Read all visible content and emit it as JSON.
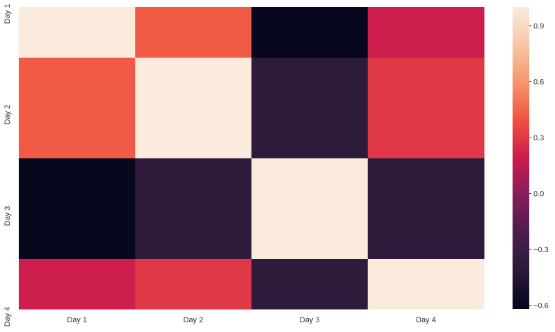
{
  "chart_data": {
    "type": "heatmap",
    "title": "",
    "xlabel": "",
    "ylabel": "",
    "x_categories": [
      "Day 1",
      "Day 2",
      "Day 3",
      "Day 4"
    ],
    "y_categories": [
      "Day 1",
      "Day 2",
      "Day 3",
      "Day 4"
    ],
    "values": [
      [
        1.0,
        0.42,
        -0.6,
        0.2
      ],
      [
        0.42,
        1.0,
        -0.4,
        0.3
      ],
      [
        -0.6,
        -0.4,
        1.0,
        -0.4
      ],
      [
        0.2,
        0.3,
        -0.4,
        1.0
      ]
    ],
    "colorbar": {
      "vmin": -0.62,
      "vmax": 1.0,
      "ticks": [
        -0.6,
        -0.3,
        0.0,
        0.3,
        0.6,
        0.9
      ],
      "tick_labels": [
        "−0.6",
        "−0.3",
        "0.0",
        "0.3",
        "0.6",
        "0.9"
      ],
      "colormap": "rocket",
      "colormap_stops": [
        {
          "t": 0.0,
          "color": "#03051a"
        },
        {
          "t": 0.125,
          "color": "#2b1a3a"
        },
        {
          "t": 0.25,
          "color": "#4c1d4b"
        },
        {
          "t": 0.375,
          "color": "#841e5a"
        },
        {
          "t": 0.5,
          "color": "#cb1b4f"
        },
        {
          "t": 0.625,
          "color": "#f0513e"
        },
        {
          "t": 0.75,
          "color": "#f6966b"
        },
        {
          "t": 0.875,
          "color": "#f7c6a6"
        },
        {
          "t": 1.0,
          "color": "#faebdd"
        }
      ]
    }
  }
}
